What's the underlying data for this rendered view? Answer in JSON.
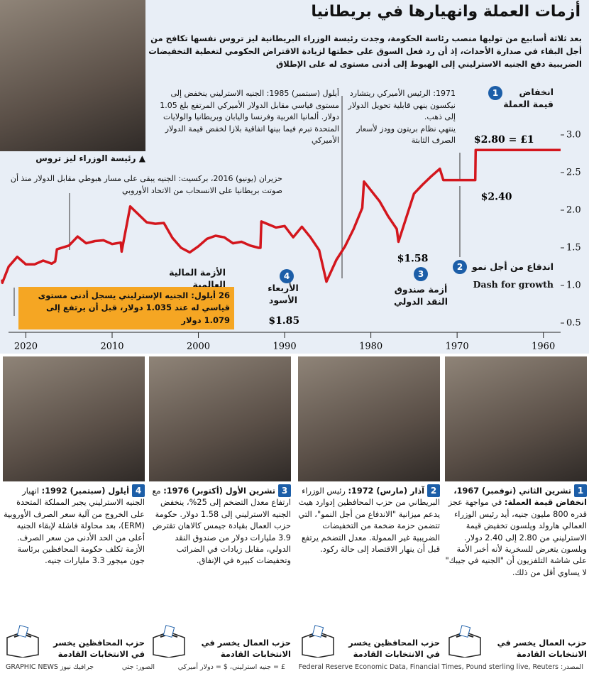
{
  "header": {
    "title": "أزمات العملة وانهيارها في بريطانيا",
    "subtitle": "بعد ثلاثة أسابيع من توليها منصب رئاسة الحكومة، وجدت رئيسة الوزراء البريطانية ليز تروس نفسها تكافح من أجل البقاء في صدارة الأحداث، إذ أن رد فعل السوق على خطتها لزيادة الاقتراض الحكومي لتغطية التخفيضات الضريبية دفع الجنيه الاسترليني إلى الهبوط إلى أدنى مستوى له على الإطلاق",
    "photo_caption": "رئيسة الوزراء ليز تروس"
  },
  "chart_data": {
    "type": "line",
    "color": "#d3161d",
    "x": [
      1958,
      1967.85,
      1967.9,
      1971.6,
      1972,
      1973,
      1974,
      1975,
      1976.8,
      1977,
      1978,
      1979,
      1980.8,
      1981,
      1982,
      1983,
      1984,
      1985.15,
      1986,
      1987,
      1988,
      1989,
      1990,
      1991,
      1992.7,
      1992.8,
      1993,
      1994,
      1995,
      1996,
      1997,
      1998,
      1999,
      2000,
      2001,
      2002,
      2003,
      2004,
      2005,
      2006,
      2007.9,
      2008.9,
      2009,
      2010,
      2011,
      2012,
      2013,
      2014,
      2015,
      2016.4,
      2016.6,
      2017,
      2018,
      2019,
      2020,
      2021,
      2022,
      2022.73,
      2022.75
    ],
    "values": [
      2.8,
      2.8,
      2.4,
      2.4,
      2.55,
      2.45,
      2.34,
      2.22,
      1.58,
      1.75,
      1.92,
      2.12,
      2.38,
      2.03,
      1.75,
      1.52,
      1.34,
      1.05,
      1.47,
      1.64,
      1.78,
      1.64,
      1.79,
      1.77,
      1.85,
      1.5,
      1.5,
      1.53,
      1.58,
      1.56,
      1.64,
      1.66,
      1.62,
      1.52,
      1.44,
      1.5,
      1.63,
      1.83,
      1.82,
      1.84,
      2.05,
      1.45,
      1.57,
      1.55,
      1.6,
      1.59,
      1.56,
      1.65,
      1.53,
      1.48,
      1.32,
      1.29,
      1.33,
      1.28,
      1.28,
      1.38,
      1.25,
      1.035,
      1.079
    ],
    "value_labels": [
      null,
      "$2.80 = £1",
      "$2.40",
      null,
      null,
      null,
      null,
      null,
      "$1.58",
      null,
      null,
      null,
      null,
      null,
      null,
      null,
      null,
      "$1.05",
      null,
      null,
      null,
      null,
      null,
      null,
      "$1.85",
      null,
      null,
      null,
      null,
      null,
      null,
      null,
      null,
      null,
      null,
      null,
      null,
      null,
      null,
      null,
      null,
      null,
      null,
      null,
      null,
      null,
      null,
      null,
      null,
      null,
      null,
      null,
      null,
      null,
      null,
      null,
      null,
      null,
      null
    ],
    "xlim": [
      2023,
      1958
    ],
    "xticks": [
      2020,
      2010,
      2000,
      1990,
      1980,
      1970,
      1960
    ],
    "ylim": [
      0.5,
      3.0
    ],
    "yticks": [
      0.5,
      {
        "value": 1,
        "label": "1.0"
      },
      1.5,
      {
        "value": 2,
        "label": "2.0"
      },
      2.5,
      {
        "value": 3,
        "label": "3.0"
      }
    ],
    "annotations": {
      "nixon": "1971: الرئيس الأميركي ريتشارد نيكسون ينهي قابلية تحويل الدولار إلى ذهب.",
      "bretton": "ينتهي نظام بريتون وودز لأسعار الصرف الثابتة",
      "plaza": "أيلول (سبتمبر) 1985: الجنيه الاسترليني ينخفض إلى مستوى قياسي مقابل الدولار الأميركي المرتفع بلغ 1.05 دولار. ألمانيا الغربية وفرنسا واليابان وبريطانيا والولايات المتحدة تبرم فيما بينها اتفاقية بلازا لخفض قيمة الدولار الأميركي",
      "brexit": "حزيران (يونيو) 2016، بركسيت: الجنيه يبقى على مسار هبوطي مقابل الدولار منذ أن صوتت بريطانيا على الانسحاب من الاتحاد الأوروبي",
      "gfc": "الأزمة المالية العالمية",
      "record": "26 أيلول: الجنيه الإسترليني يسجل أدنى مستوى قياسي له عند 1.035 دولار، قبل أن يرتفع إلى 1.079 دولار"
    },
    "markers": [
      {
        "number": "1",
        "label": "انخفاض قيمة العملة"
      },
      {
        "number": "2",
        "label": "اندفاع من أجل نمو",
        "label_en": "Dash for growth"
      },
      {
        "number": "3",
        "label": "أزمة صندوق النقد الدولي"
      },
      {
        "number": "4",
        "label": "الأربعاء الأسود"
      }
    ]
  },
  "panels": [
    {
      "number": "1",
      "heading": "تشرين الثاني (نوفمبر) 1967، انخفاض قيمة العملة:",
      "body": "في مواجهة عجز قدره 800 مليون جنيه، أيد رئيس الوزراء العمالي هارولد ويلسون تخفيض قيمة الاسترليني من 2.80 إلى 2.40 دولار. ويلسون يتعرض للسخرية لأنه أخبر الأمة على شاشة التلفزيون أن \"الجنيه في جيبك\" لا يساوي أقل من ذلك.",
      "outcome": "حزب العمال يخسر في الانتخابات القادمة"
    },
    {
      "number": "2",
      "heading": "آذار (مارس) 1972:",
      "body": "رئيس الوزراء البريطاني من حزب المحافظين إدوارد هيث يدعم ميزانية \"الاندفاع من أجل النمو\"، التي تتضمن حزمة ضخمة من التخفيضات الضريبية غير الممولة. معدل التضخم يرتفع قبل أن ينهار الاقتصاد إلى حالة ركود.",
      "outcome": "حزب المحافظين يخسر في الانتخابات القادمة"
    },
    {
      "number": "3",
      "heading": "تشرين الأول (أكتوبر) 1976:",
      "body": "مع ارتفاع معدل التضخم إلى 25%، ينخفض الجنيه الاسترليني إلى 1.58 دولار. حكومة حزب العمال بقيادة جيمس كالاهان تقترض 3.9 مليارات دولار من صندوق النقد الدولي، مقابل زيادات في الضرائب وتخفيضات كبيرة في الإنفاق.",
      "outcome": "حزب العمال يخسر في الانتخابات القادمة"
    },
    {
      "number": "4",
      "heading": "أيلول (سبتمبر) 1992:",
      "body": "انهيار الجنيه الاسترليني يجبر المملكة المتحدة على الخروج من آلية سعر الصرف الأوروبية (ERM)، بعد محاولة فاشلة لإبقاء الجنيه أعلى من الحد الأدنى من سعر الصرف. الأزمة تكلف حكومة المحافظين برئاسة جون ميجور 3.3 مليارات جنيه.",
      "outcome": "حزب المحافظين يخسر في الانتخابات القادمة"
    }
  ],
  "footer": {
    "source": "المصدر: Federal Reserve Economic Data, Financial Times, Pound sterling live, Reuters",
    "units": "£ = جنيه استرليني، $ = دولار أميركي",
    "photos": "الصور: جتي",
    "credit": "GRAPHIC NEWS جرافيك نيوز"
  }
}
